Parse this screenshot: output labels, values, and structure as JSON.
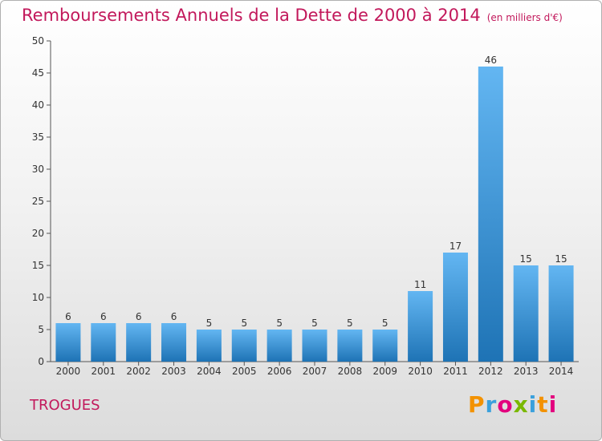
{
  "title": "Remboursements Annuels de la Dette de 2000 à 2014",
  "unit": "(en milliers d'€)",
  "commune": "TROGUES",
  "logo": {
    "text": "Proxiti",
    "letter_colors": [
      "#f39200",
      "#3aa0dc",
      "#e3007e",
      "#7ab800",
      "#3aa0dc",
      "#f39200",
      "#e3007e"
    ]
  },
  "colors": {
    "bar_light": "#63b6f2",
    "bar_dark": "#1e73b5",
    "title": "#c2185b"
  },
  "chart_data": {
    "type": "bar",
    "categories": [
      "2000",
      "2001",
      "2002",
      "2003",
      "2004",
      "2005",
      "2006",
      "2007",
      "2008",
      "2009",
      "2010",
      "2011",
      "2012",
      "2013",
      "2014"
    ],
    "values": [
      6,
      6,
      6,
      6,
      5,
      5,
      5,
      5,
      5,
      5,
      11,
      17,
      46,
      15,
      15
    ],
    "ylim": [
      0,
      50
    ],
    "yticks": [
      0,
      5,
      10,
      15,
      20,
      25,
      30,
      35,
      40,
      45,
      50
    ],
    "grid": false,
    "legend": "none"
  }
}
